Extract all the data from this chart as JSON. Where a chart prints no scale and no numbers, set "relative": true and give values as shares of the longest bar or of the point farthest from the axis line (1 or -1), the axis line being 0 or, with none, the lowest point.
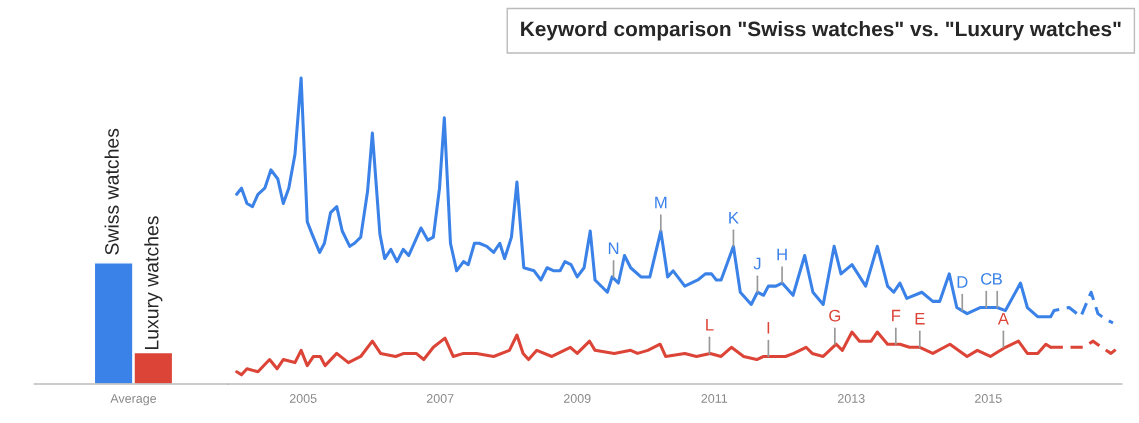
{
  "chart_data": [
    {
      "type": "bar",
      "categories": [
        "Average"
      ],
      "relative": true,
      "legend": false,
      "series": [
        {
          "name": "Swiss watches",
          "color": "#3b82e8",
          "values": [
            1
          ]
        },
        {
          "name": "Luxury watches",
          "color": "#db4437",
          "values": [
            0.26
          ]
        }
      ]
    },
    {
      "type": "line",
      "relative": true,
      "legend": false,
      "title": "Keyword comparison \"Swiss watches\" vs. \"Luxury watches\"",
      "xlim": [
        2003.9,
        2016.95
      ],
      "xticks": [
        2005,
        2007,
        2009,
        2011,
        2013,
        2015
      ],
      "series": [
        {
          "color": "#3b82e8",
          "line_style": "solid",
          "x": [
            2004.03,
            2004.1,
            2004.18,
            2004.26,
            2004.34,
            2004.44,
            2004.53,
            2004.63,
            2004.71,
            2004.79,
            2004.88,
            2004.97,
            2005.06,
            2005.13,
            2005.24,
            2005.31,
            2005.4,
            2005.49,
            2005.57,
            2005.68,
            2005.75,
            2005.84,
            2005.94,
            2006.01,
            2006.12,
            2006.19,
            2006.28,
            2006.37,
            2006.46,
            2006.54,
            2006.62,
            2006.72,
            2006.82,
            2006.9,
            2006.99,
            2007.06,
            2007.15,
            2007.24,
            2007.34,
            2007.41,
            2007.5,
            2007.57,
            2007.68,
            2007.78,
            2007.87,
            2007.94,
            2008.04,
            2008.12,
            2008.22,
            2008.37,
            2008.47,
            2008.56,
            2008.66,
            2008.75,
            2008.82,
            2008.91,
            2009.0,
            2009.1,
            2009.19,
            2009.26,
            2009.44,
            2009.51,
            2009.6,
            2009.69,
            2009.78,
            2009.93,
            2010.06,
            2010.22,
            2010.32,
            2010.4,
            2010.57,
            2010.76,
            2010.87,
            2010.96,
            2011.03,
            2011.1,
            2011.28,
            2011.38,
            2011.54,
            2011.63,
            2011.72,
            2011.79,
            2011.9,
            2011.99,
            2012.15,
            2012.32,
            2012.44,
            2012.59,
            2012.75,
            2012.85,
            2013.01,
            2013.21,
            2013.38,
            2013.53,
            2013.62,
            2013.71,
            2013.81,
            2014.03,
            2014.19,
            2014.29,
            2014.43,
            2014.54,
            2014.69,
            2014.88,
            2015.13,
            2015.25,
            2015.47,
            2015.57,
            2015.72,
            2015.91
          ],
          "values": [
            0.62,
            0.64,
            0.59,
            0.58,
            0.62,
            0.64,
            0.7,
            0.67,
            0.59,
            0.64,
            0.75,
            1.0,
            0.53,
            0.49,
            0.43,
            0.46,
            0.56,
            0.58,
            0.5,
            0.45,
            0.46,
            0.48,
            0.63,
            0.82,
            0.49,
            0.41,
            0.44,
            0.4,
            0.44,
            0.42,
            0.46,
            0.51,
            0.47,
            0.48,
            0.64,
            0.87,
            0.46,
            0.37,
            0.4,
            0.39,
            0.46,
            0.46,
            0.45,
            0.43,
            0.46,
            0.41,
            0.48,
            0.66,
            0.38,
            0.37,
            0.34,
            0.38,
            0.37,
            0.37,
            0.4,
            0.39,
            0.35,
            0.38,
            0.5,
            0.34,
            0.3,
            0.35,
            0.33,
            0.42,
            0.38,
            0.35,
            0.35,
            0.5,
            0.35,
            0.37,
            0.32,
            0.34,
            0.36,
            0.36,
            0.34,
            0.34,
            0.45,
            0.3,
            0.26,
            0.3,
            0.29,
            0.32,
            0.32,
            0.33,
            0.29,
            0.42,
            0.3,
            0.26,
            0.45,
            0.36,
            0.39,
            0.32,
            0.45,
            0.32,
            0.3,
            0.33,
            0.28,
            0.3,
            0.27,
            0.27,
            0.36,
            0.25,
            0.23,
            0.25,
            0.25,
            0.24,
            0.33,
            0.25,
            0.22,
            0.22
          ]
        },
        {
          "color": "#3b82e8",
          "line_style": "dashed",
          "x": [
            2015.91,
            2015.96,
            2016.18,
            2016.35,
            2016.5,
            2016.6,
            2016.72,
            2016.82
          ],
          "values": [
            0.22,
            0.24,
            0.25,
            0.22,
            0.3,
            0.23,
            0.21,
            0.2
          ]
        },
        {
          "color": "#db4437",
          "line_style": "solid",
          "x": [
            2004.03,
            2004.1,
            2004.18,
            2004.34,
            2004.51,
            2004.62,
            2004.71,
            2004.88,
            2004.97,
            2005.06,
            2005.15,
            2005.25,
            2005.32,
            2005.49,
            2005.66,
            2005.84,
            2006.01,
            2006.13,
            2006.35,
            2006.47,
            2006.65,
            2006.76,
            2006.9,
            2007.07,
            2007.19,
            2007.34,
            2007.53,
            2007.78,
            2008.01,
            2008.12,
            2008.21,
            2008.29,
            2008.41,
            2008.63,
            2008.9,
            2009.0,
            2009.18,
            2009.26,
            2009.54,
            2009.78,
            2009.88,
            2010.03,
            2010.21,
            2010.29,
            2010.57,
            2010.74,
            2010.94,
            2011.1,
            2011.25,
            2011.43,
            2011.62,
            2011.72,
            2012.04,
            2012.16,
            2012.34,
            2012.43,
            2012.59,
            2012.78,
            2012.87,
            2013.01,
            2013.12,
            2013.29,
            2013.38,
            2013.53,
            2013.71,
            2013.85,
            2014.0,
            2014.19,
            2014.44,
            2014.69,
            2014.84,
            2015.03,
            2015.25,
            2015.44,
            2015.57,
            2015.72,
            2015.84,
            2015.91
          ],
          "values": [
            0.04,
            0.03,
            0.05,
            0.04,
            0.08,
            0.05,
            0.08,
            0.07,
            0.11,
            0.06,
            0.09,
            0.09,
            0.06,
            0.1,
            0.07,
            0.09,
            0.14,
            0.1,
            0.09,
            0.1,
            0.1,
            0.08,
            0.12,
            0.15,
            0.09,
            0.1,
            0.1,
            0.09,
            0.11,
            0.16,
            0.1,
            0.08,
            0.11,
            0.09,
            0.12,
            0.1,
            0.14,
            0.11,
            0.1,
            0.11,
            0.1,
            0.11,
            0.13,
            0.09,
            0.1,
            0.09,
            0.1,
            0.09,
            0.12,
            0.09,
            0.08,
            0.09,
            0.09,
            0.1,
            0.12,
            0.1,
            0.09,
            0.13,
            0.11,
            0.17,
            0.14,
            0.14,
            0.17,
            0.13,
            0.13,
            0.12,
            0.12,
            0.1,
            0.13,
            0.09,
            0.11,
            0.09,
            0.12,
            0.14,
            0.1,
            0.1,
            0.13,
            0.12
          ]
        },
        {
          "color": "#db4437",
          "line_style": "dashed",
          "x": [
            2015.91,
            2016.38,
            2016.53,
            2016.65,
            2016.79,
            2016.9
          ],
          "values": [
            0.12,
            0.12,
            0.14,
            0.12,
            0.1,
            0.12
          ]
        }
      ],
      "annotations": [
        {
          "text": "N",
          "x": 2009.53,
          "y": 0.35
        },
        {
          "text": "M",
          "x": 2010.22,
          "y": 0.5
        },
        {
          "text": "K",
          "x": 2011.28,
          "y": 0.45
        },
        {
          "text": "J",
          "x": 2011.63,
          "y": 0.3
        },
        {
          "text": "H",
          "x": 2011.99,
          "y": 0.33
        },
        {
          "text": "D",
          "x": 2014.62,
          "y": 0.24
        },
        {
          "text": "C",
          "x": 2014.97,
          "y": 0.25
        },
        {
          "text": "B",
          "x": 2015.13,
          "y": 0.25
        },
        {
          "text": "L",
          "x": 2010.93,
          "y": 0.1
        },
        {
          "text": "I",
          "x": 2011.79,
          "y": 0.09
        },
        {
          "text": "G",
          "x": 2012.76,
          "y": 0.13
        },
        {
          "text": "F",
          "x": 2013.65,
          "y": 0.13
        },
        {
          "text": "E",
          "x": 2014.0,
          "y": 0.12
        },
        {
          "text": "A",
          "x": 2015.22,
          "y": 0.12
        }
      ]
    }
  ]
}
